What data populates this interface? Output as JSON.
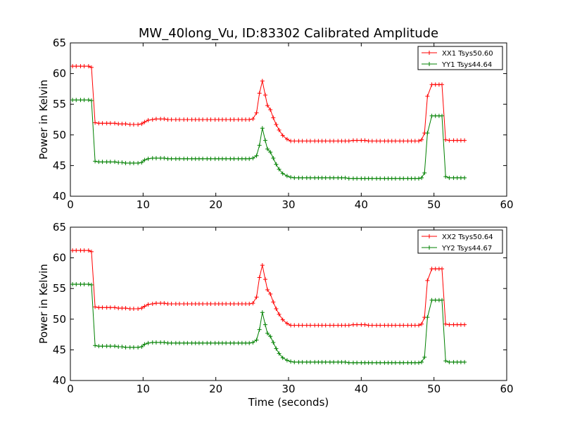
{
  "figure": {
    "title": "MW_40long_Vu, ID:83302 Calibrated Amplitude",
    "xlabel": "Time (seconds)"
  },
  "colors": {
    "red": "#ff0000",
    "green": "#008000"
  },
  "chart_data": [
    {
      "type": "line",
      "title": "MW_40long_Vu, ID:83302 Calibrated Amplitude",
      "xlabel": "",
      "ylabel": "Power in Kelvin",
      "xlim": [
        0,
        60
      ],
      "ylim": [
        40,
        65
      ],
      "xticks": [
        0,
        10,
        20,
        30,
        40,
        50,
        60
      ],
      "yticks": [
        40,
        45,
        50,
        55,
        60,
        65
      ],
      "grid": false,
      "legend": "top-right",
      "marker": "+",
      "x": [
        0.3,
        0.8,
        1.4,
        1.9,
        2.5,
        2.9,
        3.4,
        3.9,
        4.4,
        5.0,
        5.5,
        6.1,
        6.6,
        7.1,
        7.6,
        8.2,
        8.7,
        9.3,
        9.8,
        10.2,
        10.7,
        11.3,
        11.8,
        12.4,
        12.9,
        13.4,
        13.9,
        14.5,
        15.0,
        15.6,
        16.1,
        16.7,
        17.2,
        17.7,
        18.2,
        18.8,
        19.3,
        19.9,
        20.4,
        20.9,
        21.4,
        22.0,
        22.5,
        23.1,
        23.6,
        24.1,
        24.6,
        25.1,
        25.6,
        26.0,
        26.4,
        26.8,
        27.1,
        27.5,
        27.9,
        28.3,
        28.7,
        29.2,
        29.8,
        30.3,
        30.8,
        31.4,
        31.9,
        32.5,
        33.0,
        33.6,
        34.1,
        34.6,
        35.1,
        35.7,
        36.2,
        36.8,
        37.3,
        37.8,
        38.3,
        38.9,
        39.4,
        40.0,
        40.5,
        41.0,
        41.5,
        42.1,
        42.6,
        43.2,
        43.7,
        44.2,
        44.7,
        45.3,
        45.8,
        46.4,
        46.9,
        47.4,
        47.9,
        48.3,
        48.7,
        49.1,
        49.7,
        50.2,
        50.7,
        51.1,
        51.6,
        52.1,
        52.7,
        53.2,
        53.7,
        54.2
      ],
      "series": [
        {
          "name": "XX1 Tsys50.60",
          "color": "#ff0000",
          "values": [
            61.2,
            61.2,
            61.2,
            61.2,
            61.2,
            61.0,
            52.0,
            51.9,
            51.9,
            51.9,
            51.9,
            51.9,
            51.8,
            51.8,
            51.8,
            51.7,
            51.7,
            51.7,
            51.8,
            52.1,
            52.4,
            52.5,
            52.6,
            52.6,
            52.6,
            52.5,
            52.5,
            52.5,
            52.5,
            52.5,
            52.5,
            52.5,
            52.5,
            52.5,
            52.5,
            52.5,
            52.5,
            52.5,
            52.5,
            52.5,
            52.5,
            52.5,
            52.5,
            52.5,
            52.5,
            52.5,
            52.5,
            52.6,
            53.6,
            56.8,
            58.8,
            56.5,
            54.8,
            54.1,
            52.8,
            51.7,
            50.8,
            49.9,
            49.3,
            49.0,
            49.0,
            49.0,
            49.0,
            49.0,
            49.0,
            49.0,
            49.0,
            49.0,
            49.0,
            49.0,
            49.0,
            49.0,
            49.0,
            49.0,
            49.0,
            49.1,
            49.1,
            49.1,
            49.1,
            49.0,
            49.0,
            49.0,
            49.0,
            49.0,
            49.0,
            49.0,
            49.0,
            49.0,
            49.0,
            49.0,
            49.0,
            49.0,
            49.0,
            49.2,
            50.3,
            56.3,
            58.2,
            58.2,
            58.2,
            58.2,
            49.2,
            49.1,
            49.1,
            49.1,
            49.1,
            49.1
          ]
        },
        {
          "name": "YY1 Tsys44.64",
          "color": "#008000",
          "values": [
            55.7,
            55.7,
            55.7,
            55.7,
            55.7,
            55.6,
            45.7,
            45.6,
            45.6,
            45.6,
            45.6,
            45.6,
            45.5,
            45.5,
            45.4,
            45.4,
            45.4,
            45.4,
            45.5,
            45.9,
            46.1,
            46.2,
            46.2,
            46.2,
            46.2,
            46.1,
            46.1,
            46.1,
            46.1,
            46.1,
            46.1,
            46.1,
            46.1,
            46.1,
            46.1,
            46.1,
            46.1,
            46.1,
            46.1,
            46.1,
            46.1,
            46.1,
            46.1,
            46.1,
            46.1,
            46.1,
            46.1,
            46.2,
            46.6,
            48.3,
            51.1,
            49.1,
            47.7,
            47.2,
            46.2,
            45.2,
            44.4,
            43.7,
            43.3,
            43.1,
            43.0,
            43.0,
            43.0,
            43.0,
            43.0,
            43.0,
            43.0,
            43.0,
            43.0,
            43.0,
            43.0,
            43.0,
            43.0,
            43.0,
            42.9,
            42.9,
            42.9,
            42.9,
            42.9,
            42.9,
            42.9,
            42.9,
            42.9,
            42.9,
            42.9,
            42.9,
            42.9,
            42.9,
            42.9,
            42.9,
            42.9,
            42.9,
            42.9,
            43.0,
            43.8,
            50.3,
            53.1,
            53.1,
            53.1,
            53.1,
            43.2,
            43.0,
            43.0,
            43.0,
            43.0,
            43.0
          ]
        }
      ]
    },
    {
      "type": "line",
      "title": "",
      "xlabel": "Time (seconds)",
      "ylabel": "Power in Kelvin",
      "xlim": [
        0,
        60
      ],
      "ylim": [
        40,
        65
      ],
      "xticks": [
        0,
        10,
        20,
        30,
        40,
        50,
        60
      ],
      "yticks": [
        40,
        45,
        50,
        55,
        60,
        65
      ],
      "grid": false,
      "legend": "top-right",
      "marker": "+",
      "x": [
        0.3,
        0.8,
        1.4,
        1.9,
        2.5,
        2.9,
        3.4,
        3.9,
        4.4,
        5.0,
        5.5,
        6.1,
        6.6,
        7.1,
        7.6,
        8.2,
        8.7,
        9.3,
        9.8,
        10.2,
        10.7,
        11.3,
        11.8,
        12.4,
        12.9,
        13.4,
        13.9,
        14.5,
        15.0,
        15.6,
        16.1,
        16.7,
        17.2,
        17.7,
        18.2,
        18.8,
        19.3,
        19.9,
        20.4,
        20.9,
        21.4,
        22.0,
        22.5,
        23.1,
        23.6,
        24.1,
        24.6,
        25.1,
        25.6,
        26.0,
        26.4,
        26.8,
        27.1,
        27.5,
        27.9,
        28.3,
        28.7,
        29.2,
        29.8,
        30.3,
        30.8,
        31.4,
        31.9,
        32.5,
        33.0,
        33.6,
        34.1,
        34.6,
        35.1,
        35.7,
        36.2,
        36.8,
        37.3,
        37.8,
        38.3,
        38.9,
        39.4,
        40.0,
        40.5,
        41.0,
        41.5,
        42.1,
        42.6,
        43.2,
        43.7,
        44.2,
        44.7,
        45.3,
        45.8,
        46.4,
        46.9,
        47.4,
        47.9,
        48.3,
        48.7,
        49.1,
        49.7,
        50.2,
        50.7,
        51.1,
        51.6,
        52.1,
        52.7,
        53.2,
        53.7,
        54.2
      ],
      "series": [
        {
          "name": "XX2 Tsys50.64",
          "color": "#ff0000",
          "values": [
            61.2,
            61.2,
            61.2,
            61.2,
            61.2,
            61.0,
            52.0,
            51.9,
            51.9,
            51.9,
            51.9,
            51.9,
            51.8,
            51.8,
            51.8,
            51.7,
            51.7,
            51.7,
            51.8,
            52.1,
            52.4,
            52.5,
            52.6,
            52.6,
            52.6,
            52.5,
            52.5,
            52.5,
            52.5,
            52.5,
            52.5,
            52.5,
            52.5,
            52.5,
            52.5,
            52.5,
            52.5,
            52.5,
            52.5,
            52.5,
            52.5,
            52.5,
            52.5,
            52.5,
            52.5,
            52.5,
            52.5,
            52.6,
            53.6,
            56.8,
            58.8,
            56.5,
            54.8,
            54.1,
            52.8,
            51.7,
            50.8,
            49.9,
            49.3,
            49.0,
            49.0,
            49.0,
            49.0,
            49.0,
            49.0,
            49.0,
            49.0,
            49.0,
            49.0,
            49.0,
            49.0,
            49.0,
            49.0,
            49.0,
            49.0,
            49.1,
            49.1,
            49.1,
            49.1,
            49.0,
            49.0,
            49.0,
            49.0,
            49.0,
            49.0,
            49.0,
            49.0,
            49.0,
            49.0,
            49.0,
            49.0,
            49.0,
            49.0,
            49.2,
            50.3,
            56.3,
            58.2,
            58.2,
            58.2,
            58.2,
            49.2,
            49.1,
            49.1,
            49.1,
            49.1,
            49.1
          ]
        },
        {
          "name": "YY2 Tsys44.67",
          "color": "#008000",
          "values": [
            55.7,
            55.7,
            55.7,
            55.7,
            55.7,
            55.6,
            45.7,
            45.6,
            45.6,
            45.6,
            45.6,
            45.6,
            45.5,
            45.5,
            45.4,
            45.4,
            45.4,
            45.4,
            45.5,
            45.9,
            46.1,
            46.2,
            46.2,
            46.2,
            46.2,
            46.1,
            46.1,
            46.1,
            46.1,
            46.1,
            46.1,
            46.1,
            46.1,
            46.1,
            46.1,
            46.1,
            46.1,
            46.1,
            46.1,
            46.1,
            46.1,
            46.1,
            46.1,
            46.1,
            46.1,
            46.1,
            46.1,
            46.2,
            46.6,
            48.3,
            51.1,
            49.1,
            47.7,
            47.2,
            46.2,
            45.2,
            44.4,
            43.7,
            43.3,
            43.1,
            43.0,
            43.0,
            43.0,
            43.0,
            43.0,
            43.0,
            43.0,
            43.0,
            43.0,
            43.0,
            43.0,
            43.0,
            43.0,
            43.0,
            42.9,
            42.9,
            42.9,
            42.9,
            42.9,
            42.9,
            42.9,
            42.9,
            42.9,
            42.9,
            42.9,
            42.9,
            42.9,
            42.9,
            42.9,
            42.9,
            42.9,
            42.9,
            42.9,
            43.0,
            43.8,
            50.3,
            53.1,
            53.1,
            53.1,
            53.1,
            43.2,
            43.0,
            43.0,
            43.0,
            43.0,
            43.0
          ]
        }
      ]
    }
  ]
}
